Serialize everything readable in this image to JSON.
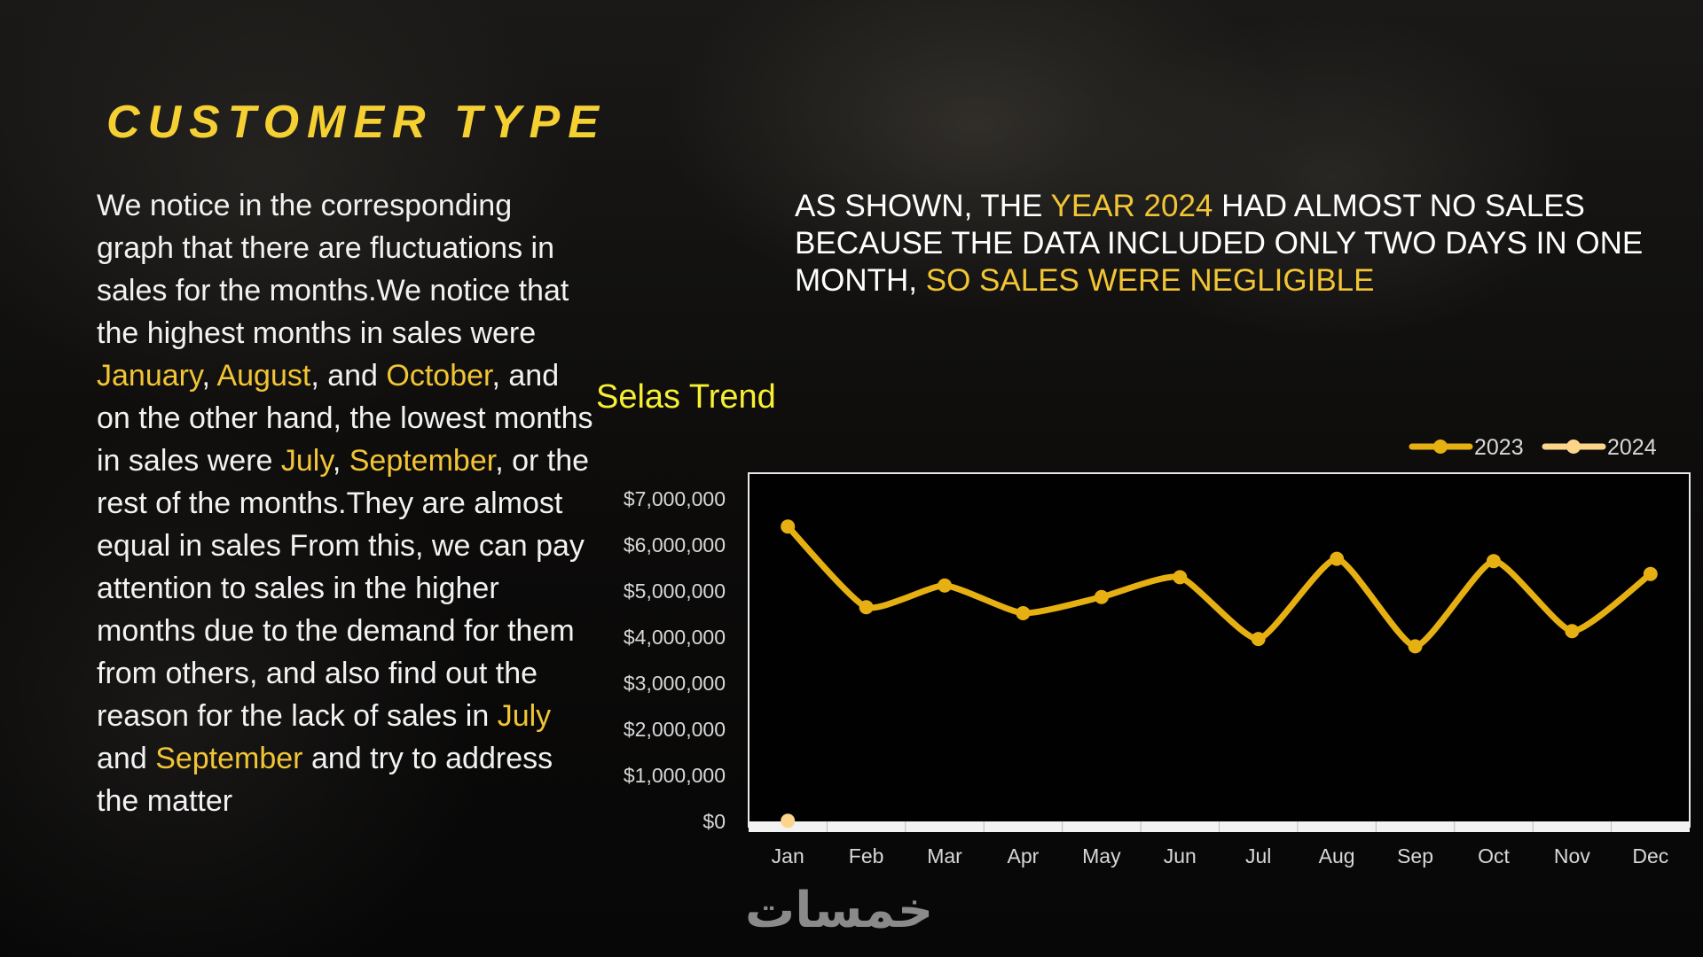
{
  "colors": {
    "title": "#f5d033",
    "highlight": "#f2c535",
    "series_2023": "#e6b012",
    "series_2024": "#fcd48a",
    "chart_title": "#f7f032"
  },
  "title": "CUSTOMER TYPE",
  "paragraph": [
    {
      "t": "We notice in the corresponding graph that there are fluctuations in sales for the months.We notice that the highest months in sales were "
    },
    {
      "t": "January",
      "hl": true
    },
    {
      "t": ", "
    },
    {
      "t": "August",
      "hl": true
    },
    {
      "t": ", and "
    },
    {
      "t": "October",
      "hl": true
    },
    {
      "t": ", and on the other hand, the lowest months in sales were "
    },
    {
      "t": "July",
      "hl": true
    },
    {
      "t": ", "
    },
    {
      "t": "September",
      "hl": true
    },
    {
      "t": ", or the rest of the months.They are almost equal in sales From this, we can pay attention to sales in the higher months due to the demand for them from others, and also find out the reason for the lack of sales in "
    },
    {
      "t": "July",
      "hl": true
    },
    {
      "t": " and "
    },
    {
      "t": "September",
      "hl": true
    },
    {
      "t": " and try to address the matter"
    }
  ],
  "note": [
    {
      "t": "As shown, the "
    },
    {
      "t": "year 2024",
      "hl": true
    },
    {
      "t": " had almost no sales because the data included only two days in one month, "
    },
    {
      "t": "so sales were negligible",
      "hl": true
    }
  ],
  "logo_text": "خمسات",
  "chart_data": {
    "type": "line",
    "title": "Selas Trend",
    "categories": [
      "Jan",
      "Feb",
      "Mar",
      "Apr",
      "May",
      "Jun",
      "Jul",
      "Aug",
      "Sep",
      "Oct",
      "Nov",
      "Dec"
    ],
    "series": [
      {
        "name": "2023",
        "values": [
          6400000,
          4650000,
          5120000,
          4520000,
          4870000,
          5300000,
          3960000,
          5700000,
          3800000,
          5650000,
          4130000,
          5370000
        ],
        "smooth": true
      },
      {
        "name": "2024",
        "values": [
          15000,
          null,
          null,
          null,
          null,
          null,
          null,
          null,
          null,
          null,
          null,
          null
        ]
      }
    ],
    "ylim": [
      0,
      7000000
    ],
    "yticks": [
      "$0",
      "$1,000,000",
      "$2,000,000",
      "$3,000,000",
      "$4,000,000",
      "$5,000,000",
      "$6,000,000",
      "$7,000,000"
    ],
    "ytick_values": [
      0,
      1000000,
      2000000,
      3000000,
      4000000,
      5000000,
      6000000,
      7000000
    ],
    "grid": false,
    "legend": "top-right"
  }
}
